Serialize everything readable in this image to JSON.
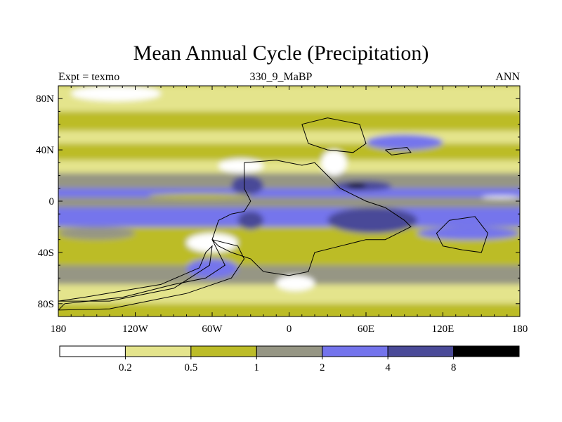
{
  "title": "Mean Annual Cycle (Precipitation)",
  "subtitle_left": "Expt = texmo",
  "subtitle_center": "330_9_MaBP",
  "subtitle_right": "ANN",
  "colors": {
    "c0": "#ffffff",
    "c1": "#e4e48c",
    "c2": "#bcbc28",
    "c3": "#969684",
    "c4": "#7474ec",
    "c5": "#4a4a98",
    "c6": "#000000",
    "coast": "#000000"
  },
  "chart_data": {
    "type": "heatmap",
    "title": "Mean Annual Cycle (Precipitation)",
    "xlabel": "",
    "ylabel": "",
    "xlim": [
      -180,
      180
    ],
    "ylim": [
      -90,
      90
    ],
    "x_ticks": [
      {
        "value": -180,
        "label": "180"
      },
      {
        "value": -120,
        "label": "120W"
      },
      {
        "value": -60,
        "label": "60W"
      },
      {
        "value": 0,
        "label": "0"
      },
      {
        "value": 60,
        "label": "60E"
      },
      {
        "value": 120,
        "label": "120E"
      },
      {
        "value": 180,
        "label": "180"
      }
    ],
    "y_ticks": [
      {
        "value": 80,
        "label": "80N"
      },
      {
        "value": 40,
        "label": "40N"
      },
      {
        "value": 0,
        "label": "0"
      },
      {
        "value": -40,
        "label": "40S"
      },
      {
        "value": -80,
        "label": "80S"
      }
    ],
    "colorbar": {
      "boundaries": [
        "0.2",
        "0.5",
        "1",
        "2",
        "4",
        "8"
      ],
      "colors": [
        "#ffffff",
        "#e4e48c",
        "#bcbc28",
        "#969684",
        "#7474ec",
        "#4a4a98",
        "#000000"
      ]
    },
    "latitude_bands": [
      {
        "lat": [
          70,
          90
        ],
        "level": 1
      },
      {
        "lat": [
          55,
          70
        ],
        "level": 2
      },
      {
        "lat": [
          45,
          55
        ],
        "level": 1
      },
      {
        "lat": [
          32,
          45
        ],
        "level": 2
      },
      {
        "lat": [
          22,
          32
        ],
        "level": 1
      },
      {
        "lat": [
          10,
          22
        ],
        "level": 3
      },
      {
        "lat": [
          3,
          10
        ],
        "level": 4
      },
      {
        "lat": [
          -5,
          3
        ],
        "level": 3
      },
      {
        "lat": [
          -20,
          -5
        ],
        "level": 4
      },
      {
        "lat": [
          -35,
          -20
        ],
        "level": 2
      },
      {
        "lat": [
          -50,
          -35
        ],
        "level": 2
      },
      {
        "lat": [
          -65,
          -50
        ],
        "level": 3
      },
      {
        "lat": [
          -80,
          -65
        ],
        "level": 1
      },
      {
        "lat": [
          -90,
          -80
        ],
        "level": 2
      }
    ],
    "features": [
      {
        "lon": [
          -170,
          -100
        ],
        "lat": [
          78,
          90
        ],
        "level": 0
      },
      {
        "lon": [
          150,
          180
        ],
        "lat": [
          2,
          4
        ],
        "level": 0
      },
      {
        "lon": [
          -110,
          -30
        ],
        "lat": [
          2,
          6
        ],
        "level": 2
      },
      {
        "lon": [
          -55,
          -20
        ],
        "lat": [
          22,
          33
        ],
        "level": 0
      },
      {
        "lon": [
          -45,
          -20
        ],
        "lat": [
          5,
          20
        ],
        "level": 5
      },
      {
        "lon": [
          -38,
          -28
        ],
        "lat": [
          -16,
          -11
        ],
        "level": 6
      },
      {
        "lon": [
          -40,
          -20
        ],
        "lat": [
          -22,
          -8
        ],
        "level": 5
      },
      {
        "lon": [
          25,
          45
        ],
        "lat": [
          20,
          40
        ],
        "level": 0
      },
      {
        "lon": [
          35,
          80
        ],
        "lat": [
          8,
          16
        ],
        "level": 5
      },
      {
        "lon": [
          45,
          60
        ],
        "lat": [
          10,
          14
        ],
        "level": 6
      },
      {
        "lon": [
          30,
          100
        ],
        "lat": [
          -25,
          -5
        ],
        "level": 5
      },
      {
        "lon": [
          -80,
          -40
        ],
        "lat": [
          -40,
          -25
        ],
        "level": 0
      },
      {
        "lon": [
          -80,
          -40
        ],
        "lat": [
          -60,
          -45
        ],
        "level": 4
      },
      {
        "lon": [
          -10,
          20
        ],
        "lat": [
          -70,
          -58
        ],
        "level": 0
      },
      {
        "lon": [
          100,
          180
        ],
        "lat": [
          -30,
          -20
        ],
        "level": 4
      },
      {
        "lon": [
          60,
          120
        ],
        "lat": [
          40,
          52
        ],
        "level": 4
      },
      {
        "lon": [
          -180,
          -120
        ],
        "lat": [
          -30,
          -20
        ],
        "level": 3
      }
    ],
    "coastlines": [
      [
        [
          -35,
          30
        ],
        [
          -10,
          32
        ],
        [
          10,
          28
        ],
        [
          20,
          30
        ],
        [
          30,
          20
        ],
        [
          40,
          10
        ],
        [
          50,
          5
        ],
        [
          60,
          0
        ],
        [
          75,
          -5
        ],
        [
          90,
          -15
        ],
        [
          95,
          -20
        ],
        [
          75,
          -30
        ],
        [
          60,
          -30
        ],
        [
          40,
          -35
        ],
        [
          20,
          -40
        ],
        [
          15,
          -55
        ],
        [
          0,
          -58
        ],
        [
          -20,
          -55
        ],
        [
          -30,
          -45
        ],
        [
          -45,
          -40
        ],
        [
          -55,
          -35
        ],
        [
          -60,
          -30
        ],
        [
          -55,
          -15
        ],
        [
          -45,
          -10
        ],
        [
          -35,
          -8
        ],
        [
          -30,
          0
        ],
        [
          -35,
          10
        ],
        [
          -35,
          30
        ]
      ],
      [
        [
          10,
          60
        ],
        [
          30,
          65
        ],
        [
          55,
          60
        ],
        [
          60,
          45
        ],
        [
          50,
          38
        ],
        [
          30,
          40
        ],
        [
          15,
          45
        ],
        [
          10,
          60
        ]
      ],
      [
        [
          75,
          40
        ],
        [
          92,
          42
        ],
        [
          95,
          38
        ],
        [
          80,
          36
        ],
        [
          75,
          40
        ]
      ],
      [
        [
          -60,
          -30
        ],
        [
          -50,
          -50
        ],
        [
          -65,
          -60
        ],
        [
          -90,
          -65
        ],
        [
          -130,
          -75
        ],
        [
          -175,
          -80
        ],
        [
          -180,
          -85
        ],
        [
          -140,
          -84
        ],
        [
          -80,
          -72
        ],
        [
          -45,
          -60
        ],
        [
          -35,
          -45
        ],
        [
          -40,
          -35
        ],
        [
          -60,
          -30
        ]
      ],
      [
        [
          -180,
          -78
        ],
        [
          -160,
          -75
        ],
        [
          -100,
          -65
        ],
        [
          -70,
          -52
        ],
        [
          -65,
          -40
        ],
        [
          -60,
          -35
        ],
        [
          -62,
          -50
        ],
        [
          -90,
          -68
        ],
        [
          -140,
          -78
        ],
        [
          -180,
          -78
        ]
      ],
      [
        [
          125,
          -15
        ],
        [
          145,
          -12
        ],
        [
          155,
          -25
        ],
        [
          150,
          -40
        ],
        [
          135,
          -38
        ],
        [
          120,
          -35
        ],
        [
          115,
          -25
        ],
        [
          125,
          -15
        ]
      ]
    ]
  }
}
